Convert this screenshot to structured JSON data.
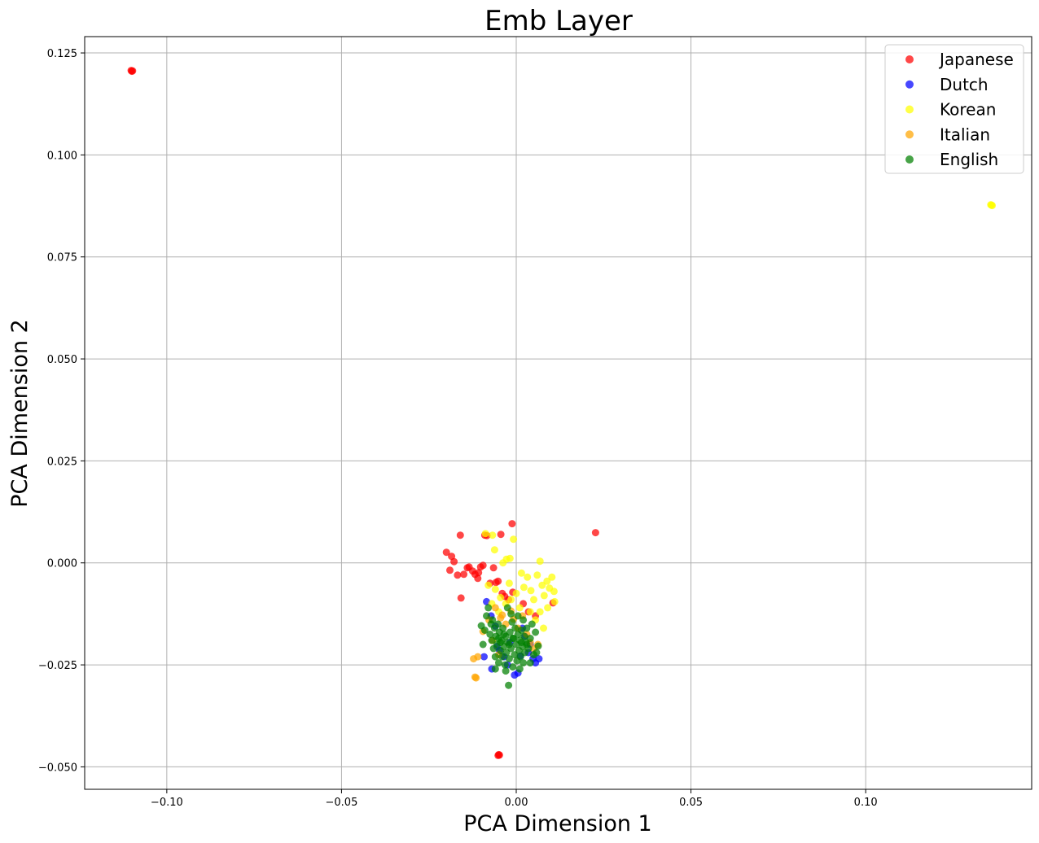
{
  "chart_data": {
    "type": "scatter",
    "title": "Emb Layer",
    "xlabel": "PCA Dimension 1",
    "ylabel": "PCA Dimension 2",
    "xlim": [
      -0.1235,
      0.1475
    ],
    "ylim": [
      -0.0555,
      0.129
    ],
    "xticks": [
      -0.1,
      -0.05,
      0.0,
      0.05,
      0.1
    ],
    "xtick_labels": [
      "−0.10",
      "−0.05",
      "0.00",
      "0.05",
      "0.10"
    ],
    "yticks": [
      -0.05,
      -0.025,
      0.0,
      0.025,
      0.05,
      0.075,
      0.1,
      0.125
    ],
    "ytick_labels": [
      "−0.050",
      "−0.025",
      "0.000",
      "0.025",
      "0.050",
      "0.075",
      "0.100",
      "0.125"
    ],
    "grid": true,
    "legend_position": "top-right",
    "series": [
      {
        "name": "Japanese",
        "color": "#ff0000",
        "points": [
          [
            -0.1102,
            0.1207
          ],
          [
            -0.11,
            0.1205
          ],
          [
            -0.1098,
            0.1206
          ],
          [
            -0.0052,
            -0.0472
          ],
          [
            -0.005,
            -0.047
          ],
          [
            -0.0048,
            -0.0471
          ],
          [
            -0.02,
            0.0026
          ],
          [
            -0.0185,
            0.0016
          ],
          [
            -0.0178,
            0.0003
          ],
          [
            -0.016,
            0.0068
          ],
          [
            -0.015,
            -0.0028
          ],
          [
            -0.014,
            -0.0012
          ],
          [
            -0.0135,
            -0.001
          ],
          [
            -0.0125,
            -0.002
          ],
          [
            -0.0118,
            -0.0028
          ],
          [
            -0.011,
            -0.0038
          ],
          [
            -0.0108,
            -0.0024
          ],
          [
            -0.0102,
            -0.001
          ],
          [
            -0.0095,
            -0.0006
          ],
          [
            -0.009,
            0.0068
          ],
          [
            -0.0084,
            0.0067
          ],
          [
            -0.0075,
            -0.005
          ],
          [
            -0.0065,
            -0.0012
          ],
          [
            -0.0058,
            -0.0048
          ],
          [
            -0.0052,
            -0.0045
          ],
          [
            -0.0044,
            0.007
          ],
          [
            -0.004,
            -0.0075
          ],
          [
            -0.0033,
            -0.0082
          ],
          [
            -0.0022,
            -0.009
          ],
          [
            -0.0012,
            0.0096
          ],
          [
            -0.001,
            -0.0072
          ],
          [
            0.002,
            -0.01
          ],
          [
            0.0035,
            -0.012
          ],
          [
            0.0055,
            -0.013
          ],
          [
            0.0105,
            -0.0098
          ],
          [
            0.0227,
            0.0074
          ],
          [
            -0.0158,
            -0.0086
          ],
          [
            -0.019,
            -0.0018
          ],
          [
            -0.0168,
            -0.003
          ]
        ]
      },
      {
        "name": "Dutch",
        "color": "#0000ff",
        "points": [
          [
            -0.0085,
            -0.0095
          ],
          [
            -0.0072,
            -0.013
          ],
          [
            -0.006,
            -0.0155
          ],
          [
            -0.0048,
            -0.0215
          ],
          [
            -0.0035,
            -0.023
          ],
          [
            -0.0025,
            -0.025
          ],
          [
            -0.0018,
            -0.0195
          ],
          [
            -0.0005,
            -0.0275
          ],
          [
            0.0005,
            -0.027
          ],
          [
            0.0012,
            -0.0228
          ],
          [
            0.0025,
            -0.018
          ],
          [
            0.0035,
            -0.022
          ],
          [
            0.0048,
            -0.0235
          ],
          [
            0.0055,
            -0.0245
          ],
          [
            0.0065,
            -0.0235
          ],
          [
            -0.0092,
            -0.023
          ],
          [
            -0.007,
            -0.026
          ],
          [
            -0.0055,
            -0.0205
          ],
          [
            0.0018,
            -0.016
          ],
          [
            0.004,
            -0.02
          ]
        ]
      },
      {
        "name": "Korean",
        "color": "#ffff00",
        "points": [
          [
            0.136,
            0.0877
          ],
          [
            0.1362,
            0.0876
          ],
          [
            0.1358,
            0.0878
          ],
          [
            -0.0088,
            0.0072
          ],
          [
            -0.0068,
            0.0068
          ],
          [
            -0.0062,
            0.0032
          ],
          [
            -0.0038,
            0.0
          ],
          [
            -0.0028,
            0.0009
          ],
          [
            -0.0018,
            0.0011
          ],
          [
            -0.0008,
            0.0058
          ],
          [
            -0.008,
            -0.0055
          ],
          [
            -0.006,
            -0.0065
          ],
          [
            -0.0045,
            -0.0085
          ],
          [
            -0.003,
            -0.01
          ],
          [
            -0.0015,
            -0.009
          ],
          [
            0.0,
            -0.0075
          ],
          [
            0.001,
            -0.011
          ],
          [
            0.0022,
            -0.006
          ],
          [
            0.0032,
            -0.0035
          ],
          [
            0.0042,
            -0.0068
          ],
          [
            0.005,
            -0.009
          ],
          [
            0.006,
            -0.003
          ],
          [
            0.0068,
            0.0004
          ],
          [
            0.0074,
            -0.0055
          ],
          [
            0.008,
            -0.008
          ],
          [
            0.0088,
            -0.0045
          ],
          [
            0.0095,
            -0.0062
          ],
          [
            0.0102,
            -0.0035
          ],
          [
            0.0108,
            -0.007
          ],
          [
            0.011,
            -0.0095
          ],
          [
            0.0068,
            -0.012
          ],
          [
            0.0055,
            -0.014
          ],
          [
            0.0078,
            -0.016
          ],
          [
            -0.005,
            -0.012
          ],
          [
            -0.002,
            -0.005
          ],
          [
            0.0015,
            -0.0025
          ],
          [
            0.004,
            -0.012
          ],
          [
            -0.007,
            -0.01
          ],
          [
            0.009,
            -0.011
          ]
        ]
      },
      {
        "name": "Italian",
        "color": "#ffa500",
        "points": [
          [
            -0.0118,
            -0.028
          ],
          [
            -0.0115,
            -0.0282
          ],
          [
            -0.0122,
            -0.0235
          ],
          [
            -0.011,
            -0.023
          ],
          [
            -0.0095,
            -0.0168
          ],
          [
            -0.0078,
            -0.014
          ],
          [
            -0.006,
            -0.011
          ],
          [
            -0.0045,
            -0.0135
          ],
          [
            -0.004,
            -0.0128
          ],
          [
            -0.003,
            -0.015
          ],
          [
            -0.0015,
            -0.0118
          ],
          [
            -0.0008,
            -0.0138
          ],
          [
            0.0005,
            -0.016
          ],
          [
            0.0018,
            -0.013
          ],
          [
            0.003,
            -0.0175
          ],
          [
            0.004,
            -0.0195
          ],
          [
            0.005,
            -0.021
          ],
          [
            0.0062,
            -0.02
          ],
          [
            -0.0068,
            -0.019
          ],
          [
            -0.005,
            -0.0225
          ]
        ]
      },
      {
        "name": "English",
        "color": "#008000",
        "points": [
          [
            -0.01,
            -0.0154
          ],
          [
            -0.009,
            -0.0165
          ],
          [
            -0.008,
            -0.011
          ],
          [
            -0.0075,
            -0.0175
          ],
          [
            -0.007,
            -0.019
          ],
          [
            -0.0068,
            -0.014
          ],
          [
            -0.0065,
            -0.021
          ],
          [
            -0.0062,
            -0.016
          ],
          [
            -0.006,
            -0.023
          ],
          [
            -0.0058,
            -0.018
          ],
          [
            -0.0055,
            -0.02
          ],
          [
            -0.0052,
            -0.015
          ],
          [
            -0.005,
            -0.0245
          ],
          [
            -0.0048,
            -0.017
          ],
          [
            -0.0045,
            -0.0215
          ],
          [
            -0.0042,
            -0.019
          ],
          [
            -0.004,
            -0.023
          ],
          [
            -0.0038,
            -0.016
          ],
          [
            -0.0035,
            -0.0205
          ],
          [
            -0.0032,
            -0.025
          ],
          [
            -0.003,
            -0.018
          ],
          [
            -0.0028,
            -0.022
          ],
          [
            -0.0025,
            -0.0195
          ],
          [
            -0.0022,
            -0.03
          ],
          [
            -0.002,
            -0.0235
          ],
          [
            -0.0018,
            -0.017
          ],
          [
            -0.0015,
            -0.021
          ],
          [
            -0.0012,
            -0.0145
          ],
          [
            -0.001,
            -0.0255
          ],
          [
            -0.0008,
            -0.0185
          ],
          [
            -0.0005,
            -0.0225
          ],
          [
            -0.0003,
            -0.016
          ],
          [
            0.0,
            -0.02
          ],
          [
            0.0002,
            -0.024
          ],
          [
            0.0005,
            -0.0175
          ],
          [
            0.0008,
            -0.0215
          ],
          [
            0.001,
            -0.019
          ],
          [
            0.0012,
            -0.023
          ],
          [
            0.0015,
            -0.0165
          ],
          [
            0.0018,
            -0.0205
          ],
          [
            0.002,
            -0.0245
          ],
          [
            0.0023,
            -0.018
          ],
          [
            0.0025,
            -0.022
          ],
          [
            0.0028,
            -0.0195
          ],
          [
            0.003,
            -0.016
          ],
          [
            0.0035,
            -0.021
          ],
          [
            0.004,
            -0.0185
          ],
          [
            0.0045,
            -0.015
          ],
          [
            0.005,
            -0.0225
          ],
          [
            0.0055,
            -0.017
          ],
          [
            0.0058,
            -0.022
          ],
          [
            0.0063,
            -0.0204
          ],
          [
            -0.0025,
            -0.011
          ],
          [
            -0.0015,
            -0.0125
          ],
          [
            0.0005,
            -0.013
          ],
          [
            0.002,
            -0.014
          ],
          [
            -0.0085,
            -0.013
          ],
          [
            -0.0072,
            -0.015
          ],
          [
            -0.0095,
            -0.02
          ],
          [
            0.004,
            -0.0245
          ],
          [
            -0.006,
            -0.026
          ],
          [
            -0.0045,
            -0.0195
          ],
          [
            -0.0035,
            -0.0175
          ],
          [
            -0.002,
            -0.02
          ],
          [
            -0.001,
            -0.0185
          ],
          [
            0.0015,
            -0.0195
          ],
          [
            0.003,
            -0.02
          ],
          [
            -0.005,
            -0.0185
          ],
          [
            0.001,
            -0.026
          ],
          [
            -0.003,
            -0.0265
          ]
        ]
      }
    ]
  }
}
